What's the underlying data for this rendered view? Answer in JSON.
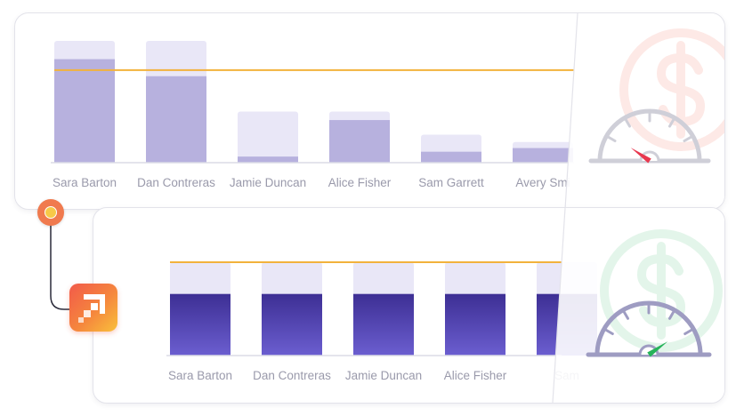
{
  "chart_data": [
    {
      "type": "bar",
      "categories": [
        "Sara Barton",
        "Dan Contreras",
        "Jamie Duncan",
        "Alice Fisher",
        "Sam Garrett",
        "Avery Smi"
      ],
      "series": [
        {
          "values": [
            100,
            100,
            42,
            42,
            23,
            17
          ]
        },
        {
          "values": [
            85,
            71,
            5,
            35,
            9,
            12
          ]
        }
      ],
      "target_line": 76,
      "ylim": [
        0,
        100
      ],
      "grid": false
    },
    {
      "type": "bar",
      "categories": [
        "Sara Barton",
        "Dan Contreras",
        "Jamie Duncan",
        "Alice Fisher",
        "Sam"
      ],
      "series": [
        {
          "values": [
            100,
            100,
            100,
            100,
            100
          ]
        },
        {
          "values": [
            66,
            66,
            66,
            66,
            66
          ]
        }
      ],
      "target_line": 100,
      "ylim": [
        0,
        100
      ],
      "grid": false
    }
  ],
  "colors": {
    "bar_light_top": "#e9e7f7",
    "bar_mid_top": "#b7b1de",
    "bar_dark_top": "#3d2f94",
    "bar_dark_bottom": "#6b5ed0",
    "target_line": "#f2b23c",
    "gauge_top": "#cfcfd8",
    "gauge_bottom": "#9e9cc2",
    "needle_red": "#e8384f",
    "needle_green": "#26b35a",
    "dollar_red": "#fde9e6",
    "dollar_green": "#e3f5ea"
  },
  "icons": {
    "connector_dot": "status-dot-icon",
    "app_logo": "app-logo-icon",
    "gauge": "speedometer-icon",
    "dollar": "dollar-sign-icon"
  }
}
